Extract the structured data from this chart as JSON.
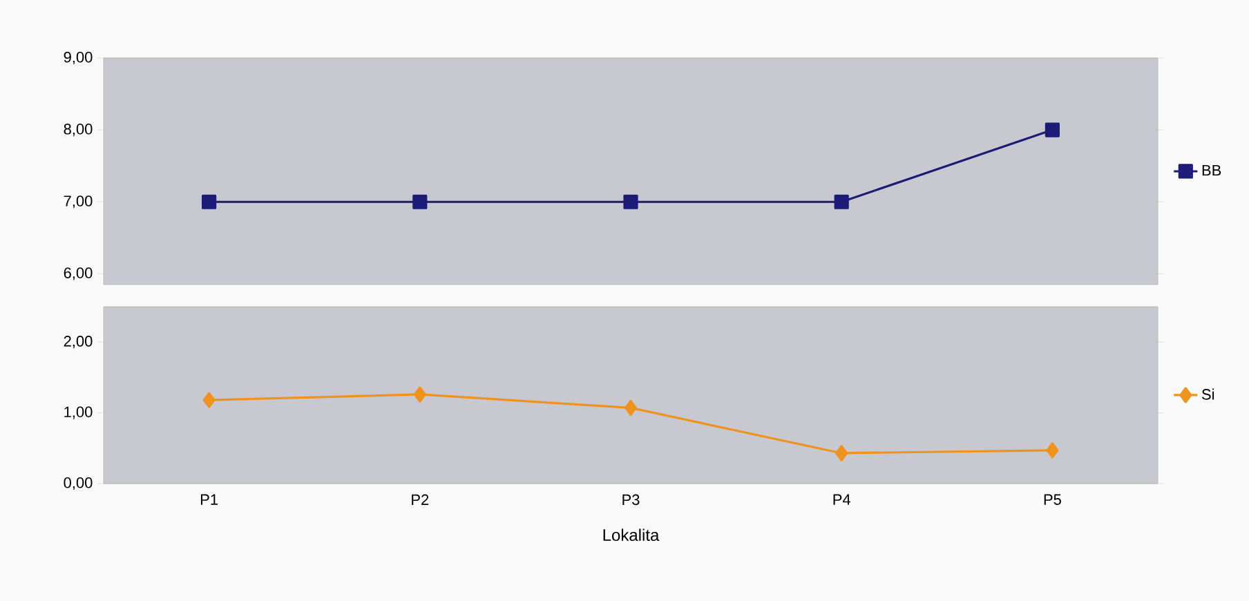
{
  "chart_data": [
    {
      "type": "line",
      "categories": [
        null,
        null,
        null,
        null,
        null
      ],
      "series": [
        {
          "name": "BB",
          "color": "#1c1c78",
          "marker": "square",
          "values": [
            7,
            7,
            7,
            7,
            8
          ]
        }
      ],
      "ylim": [
        5.85,
        9
      ],
      "yticks": [
        {
          "value": 6,
          "label": "6,00"
        },
        {
          "value": 7,
          "label": "7,00"
        },
        {
          "value": 8,
          "label": "8,00"
        },
        {
          "value": 9,
          "label": "9,00"
        }
      ],
      "grid": "y",
      "legend": "right",
      "tick_labels": "y"
    },
    {
      "type": "line",
      "categories": [
        "P1",
        "P2",
        "P3",
        "P4",
        "P5"
      ],
      "xlabel": "Lokalita",
      "series": [
        {
          "name": "Si",
          "color": "#f0921e",
          "marker": "diamond",
          "values": [
            1.18,
            1.26,
            1.07,
            0.43,
            0.47
          ]
        }
      ],
      "ylim": [
        0,
        2.5
      ],
      "yticks": [
        {
          "value": 0,
          "label": "0,00"
        },
        {
          "value": 1,
          "label": "1,00"
        },
        {
          "value": 2,
          "label": "2,00"
        }
      ],
      "grid": "y",
      "legend": "right"
    }
  ]
}
